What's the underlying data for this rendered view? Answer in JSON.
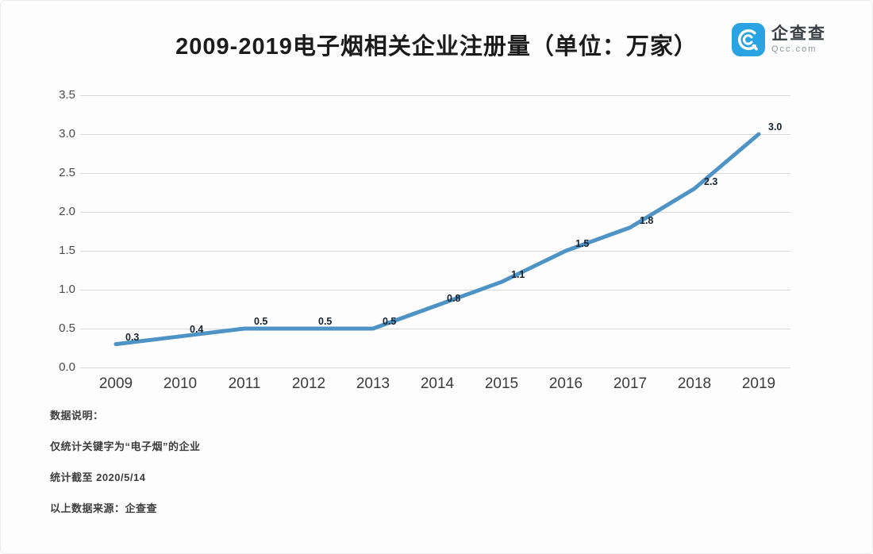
{
  "header": {
    "title": "2009-2019电子烟相关企业注册量（单位：万家）",
    "logo": {
      "name": "企查查",
      "domain": "Qcc.com",
      "brand_color": "#2aa3e2"
    }
  },
  "chart_data": {
    "type": "line",
    "title": "2009-2019电子烟相关企业注册量（单位：万家）",
    "unit": "万家",
    "categories": [
      "2009",
      "2010",
      "2011",
      "2012",
      "2013",
      "2014",
      "2015",
      "2016",
      "2017",
      "2018",
      "2019"
    ],
    "values": [
      0.3,
      0.4,
      0.5,
      0.5,
      0.5,
      0.8,
      1.1,
      1.5,
      1.8,
      2.3,
      3.0
    ],
    "point_labels": [
      "0.3",
      "0.4",
      "0.5",
      "0.5",
      "0.5",
      "0.8",
      "1.1",
      "1.5",
      "1.8",
      "2.3",
      "3.0"
    ],
    "ylim": [
      0,
      3.5
    ],
    "ytick_labels": [
      "3.5",
      "3.0",
      "2.5",
      "2.0",
      "1.5",
      "1.0",
      "0.5",
      "0.0"
    ],
    "grid": true,
    "legend": "none",
    "line_color": "#4e93c6"
  },
  "notes": {
    "line1": "数据说明：",
    "line2": "仅统计关键字为“电子烟”的企业",
    "line3": "统计截至 2020/5/14",
    "line4": "以上数据来源：企查查"
  }
}
